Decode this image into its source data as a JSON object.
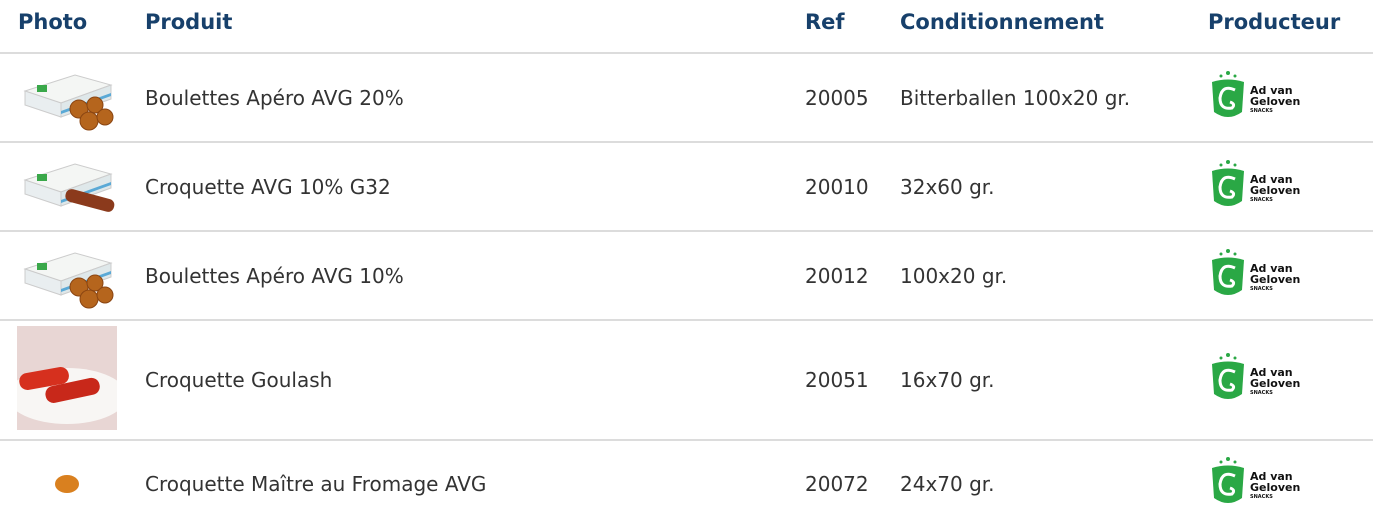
{
  "header": {
    "photo": "Photo",
    "product": "Produit",
    "ref": "Ref",
    "packaging": "Conditionnement",
    "producer": "Producteur"
  },
  "rows": [
    {
      "product": "Boulettes Apéro AVG 20%",
      "ref": "20005",
      "packaging": "Bitterballen 100x20 gr.",
      "producer": {
        "line1": "Ad van",
        "line2": "Geloven",
        "tag": "SNACKS"
      }
    },
    {
      "product": "Croquette AVG 10% G32",
      "ref": "20010",
      "packaging": "32x60 gr.",
      "producer": {
        "line1": "Ad van",
        "line2": "Geloven",
        "tag": "SNACKS"
      }
    },
    {
      "product": "Boulettes Apéro AVG 10%",
      "ref": "20012",
      "packaging": "100x20 gr.",
      "producer": {
        "line1": "Ad van",
        "line2": "Geloven",
        "tag": "SNACKS"
      }
    },
    {
      "product": "Croquette Goulash",
      "ref": "20051",
      "packaging": "16x70 gr.",
      "producer": {
        "line1": "Ad van",
        "line2": "Geloven",
        "tag": "SNACKS"
      }
    },
    {
      "product": "Croquette Maître au Fromage AVG",
      "ref": "20072",
      "packaging": "24x70 gr.",
      "producer": {
        "line1": "Ad van",
        "line2": "Geloven",
        "tag": "SNACKS"
      }
    }
  ]
}
